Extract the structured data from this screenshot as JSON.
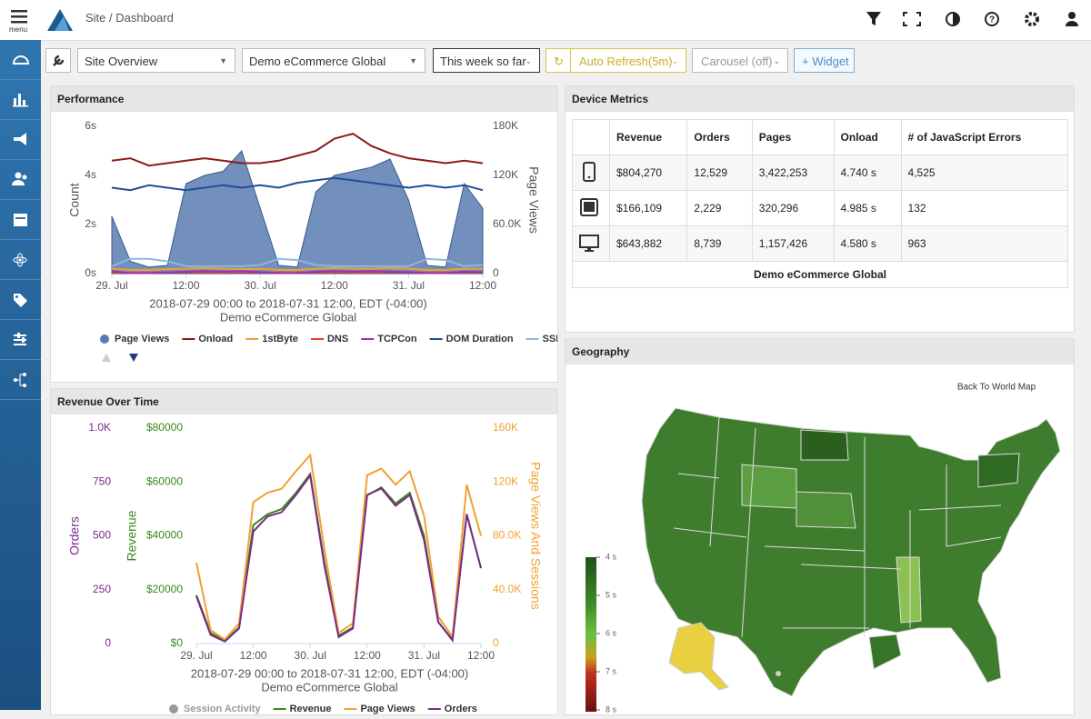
{
  "header": {
    "menu": "menu",
    "breadcrumb": "Site / Dashboard"
  },
  "toolbar": {
    "view": "Site Overview",
    "site": "Demo eCommerce Global",
    "range": "This week so far",
    "refresh": "Auto Refresh(5m)",
    "carousel": "Carousel (off)",
    "widget": "+ Widget"
  },
  "performance": {
    "title": "Performance",
    "chart_data": {
      "type": "line",
      "ylabel": "Count",
      "y2label": "Page Views",
      "subtitle": [
        "2018-07-29 00:00 to 2018-07-31 12:00, EDT (-04:00)",
        "Demo eCommerce Global"
      ],
      "x": [
        0,
        3,
        6,
        9,
        12,
        15,
        18,
        21,
        24,
        27,
        30,
        33,
        36,
        39,
        42,
        45,
        48,
        51,
        54,
        57,
        60
      ],
      "xlim": [
        0,
        60
      ],
      "xticks": [
        {
          "value": 0,
          "label": "29. Jul"
        },
        {
          "value": 12,
          "label": "12:00"
        },
        {
          "value": 24,
          "label": "30. Jul"
        },
        {
          "value": 36,
          "label": "12:00"
        },
        {
          "value": 48,
          "label": "31. Jul"
        },
        {
          "value": 60,
          "label": "12:00"
        }
      ],
      "ylim": [
        0,
        6
      ],
      "yticks": [
        {
          "value": 0,
          "label": "0s"
        },
        {
          "value": 2,
          "label": "2s"
        },
        {
          "value": 4,
          "label": "4s"
        },
        {
          "value": 6,
          "label": "6s"
        }
      ],
      "y2lim": [
        0,
        180000
      ],
      "y2ticks": [
        0,
        {
          "value": 60000,
          "label": "60.0K"
        },
        {
          "value": 120000,
          "label": "120K"
        },
        {
          "value": 180000,
          "label": "180K"
        }
      ],
      "series": [
        {
          "name": "Page Views",
          "color": "#5a7bb0",
          "axis": "y2",
          "style": "area",
          "values": [
            70000,
            15000,
            8000,
            10000,
            110000,
            120000,
            125000,
            150000,
            80000,
            10000,
            8000,
            100000,
            120000,
            125000,
            130000,
            140000,
            90000,
            10000,
            8000,
            110000,
            80000
          ]
        },
        {
          "name": "Onload",
          "color": "#8b1a1a",
          "values": [
            4.6,
            4.7,
            4.4,
            4.5,
            4.6,
            4.7,
            4.6,
            4.5,
            4.5,
            4.6,
            4.8,
            5.0,
            5.5,
            5.7,
            5.2,
            4.9,
            4.7,
            4.6,
            4.5,
            4.6,
            4.5
          ]
        },
        {
          "name": "1stByte",
          "color": "#f0a030",
          "values": [
            0.2,
            0.15,
            0.15,
            0.18,
            0.2,
            0.22,
            0.2,
            0.18,
            0.2,
            0.15,
            0.15,
            0.2,
            0.22,
            0.2,
            0.2,
            0.22,
            0.2,
            0.15,
            0.15,
            0.2,
            0.2
          ]
        },
        {
          "name": "DNS",
          "color": "#e8402a",
          "values": [
            0.05,
            0.04,
            0.04,
            0.05,
            0.06,
            0.05,
            0.05,
            0.06,
            0.05,
            0.04,
            0.04,
            0.05,
            0.06,
            0.05,
            0.05,
            0.06,
            0.05,
            0.04,
            0.04,
            0.05,
            0.05
          ]
        },
        {
          "name": "TCPCon",
          "color": "#a030b0",
          "values": [
            0.1,
            0.02,
            0.02,
            0.05,
            0.08,
            0.1,
            0.08,
            0.1,
            0.06,
            0.02,
            0.02,
            0.08,
            0.1,
            0.08,
            0.1,
            0.08,
            0.06,
            0.02,
            0.02,
            0.08,
            0.06
          ]
        },
        {
          "name": "DOM Duration",
          "color": "#1f4e9c",
          "values": [
            3.5,
            3.4,
            3.6,
            3.5,
            3.4,
            3.5,
            3.6,
            3.5,
            3.6,
            3.5,
            3.7,
            3.8,
            3.9,
            3.8,
            3.7,
            3.6,
            3.5,
            3.6,
            3.5,
            3.6,
            3.4
          ]
        },
        {
          "name": "SSL",
          "color": "#8ab8e0",
          "values": [
            0.3,
            0.6,
            0.6,
            0.5,
            0.3,
            0.3,
            0.3,
            0.3,
            0.35,
            0.6,
            0.55,
            0.35,
            0.3,
            0.3,
            0.3,
            0.3,
            0.3,
            0.6,
            0.55,
            0.3,
            0.35
          ]
        }
      ]
    }
  },
  "revenue": {
    "title": "Revenue Over Time",
    "chart_data": {
      "type": "line",
      "ylabel": "Revenue",
      "y2label": "Page Views And Sessions",
      "y3label": "Orders",
      "subtitle": [
        "2018-07-29 00:00 to 2018-07-31 12:00, EDT (-04:00)",
        "Demo eCommerce Global"
      ],
      "x": [
        0,
        3,
        6,
        9,
        12,
        15,
        18,
        21,
        24,
        27,
        30,
        33,
        36,
        39,
        42,
        45,
        48,
        51,
        54,
        57,
        60
      ],
      "xlim": [
        0,
        60
      ],
      "xticks": [
        {
          "value": 0,
          "label": "29. Jul"
        },
        {
          "value": 12,
          "label": "12:00"
        },
        {
          "value": 24,
          "label": "30. Jul"
        },
        {
          "value": 36,
          "label": "12:00"
        },
        {
          "value": 48,
          "label": "31. Jul"
        },
        {
          "value": 60,
          "label": "12:00"
        }
      ],
      "ylim": [
        0,
        80000
      ],
      "yticks": [
        {
          "value": 0,
          "label": "$0"
        },
        {
          "value": 20000,
          "label": "$20000"
        },
        {
          "value": 40000,
          "label": "$40000"
        },
        {
          "value": 60000,
          "label": "$60000"
        },
        {
          "value": 80000,
          "label": "$80000"
        }
      ],
      "y2lim": [
        0,
        160000
      ],
      "y2ticks": [
        0,
        {
          "value": 40000,
          "label": "40.0K"
        },
        {
          "value": 80000,
          "label": "80.0K"
        },
        {
          "value": 120000,
          "label": "120K"
        },
        {
          "value": 160000,
          "label": "160K"
        }
      ],
      "y3lim": [
        0,
        1000
      ],
      "y3ticks": [
        0,
        250,
        500,
        750,
        {
          "value": 1000,
          "label": "1.0K"
        }
      ],
      "hidden_series": [
        "Session Activity"
      ],
      "series": [
        {
          "name": "Revenue",
          "color": "#3a8a1a",
          "values": [
            18000,
            4000,
            1000,
            6000,
            44000,
            48000,
            50000,
            56000,
            63000,
            30000,
            3000,
            6000,
            55000,
            58000,
            52000,
            56000,
            40000,
            8000,
            1500,
            48000,
            28000
          ]
        },
        {
          "name": "Page Views",
          "color": "#f0a030",
          "axis": "y2",
          "values": [
            60000,
            10000,
            3000,
            15000,
            105000,
            112000,
            115000,
            128000,
            140000,
            70000,
            8000,
            15000,
            125000,
            130000,
            118000,
            128000,
            95000,
            20000,
            5000,
            118000,
            80000
          ]
        },
        {
          "name": "Orders",
          "color": "#7b2a8c",
          "axis": "y3",
          "values": [
            220,
            40,
            10,
            70,
            520,
            590,
            610,
            690,
            780,
            360,
            30,
            70,
            690,
            720,
            640,
            690,
            480,
            100,
            15,
            600,
            350
          ]
        }
      ]
    }
  },
  "device": {
    "title": "Device Metrics",
    "columns": [
      "Revenue",
      "Orders",
      "Pages",
      "Onload",
      "# of JavaScript Errors"
    ],
    "rows": [
      [
        "$804,270",
        "12,529",
        "3,422,253",
        "4.740 s",
        "4,525"
      ],
      [
        "$166,109",
        "2,229",
        "320,296",
        "4.985 s",
        "132"
      ],
      [
        "$643,882",
        "8,739",
        "1,157,426",
        "4.580 s",
        "963"
      ]
    ],
    "footer": "Demo eCommerce Global"
  },
  "geography": {
    "title": "Geography",
    "back": "Back To World Map",
    "colorbar": {
      "lim": [
        4,
        8
      ],
      "ticks": [
        {
          "value": 4,
          "label": "4 s"
        },
        {
          "value": 5,
          "label": "5 s"
        },
        {
          "value": 6,
          "label": "6 s"
        },
        {
          "value": 7,
          "label": "7 s"
        },
        {
          "value": 8,
          "label": "8 s"
        }
      ]
    }
  }
}
